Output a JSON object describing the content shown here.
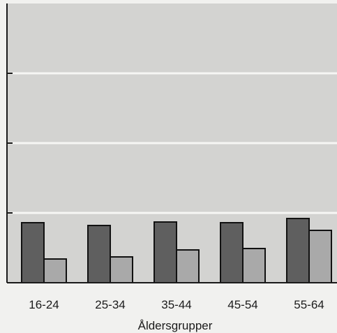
{
  "chart_data": {
    "type": "bar",
    "title": "",
    "xlabel": "Åldersgrupper",
    "ylabel": "",
    "categories": [
      "16-24",
      "25-34",
      "35-44",
      "45-54",
      "55-64"
    ],
    "series": [
      {
        "values": [
          0.86,
          0.82,
          0.87,
          0.86,
          0.92
        ],
        "color": "#5f5f5f"
      },
      {
        "values": [
          0.34,
          0.37,
          0.47,
          0.49,
          0.75
        ],
        "color": "#a9a9a9"
      }
    ],
    "ylim": [
      0,
      4
    ],
    "grid": true,
    "colors": {
      "plot_background": "#d3d3d1",
      "gridline": "#f6f6f4",
      "axis": "#1a1a1a"
    }
  }
}
